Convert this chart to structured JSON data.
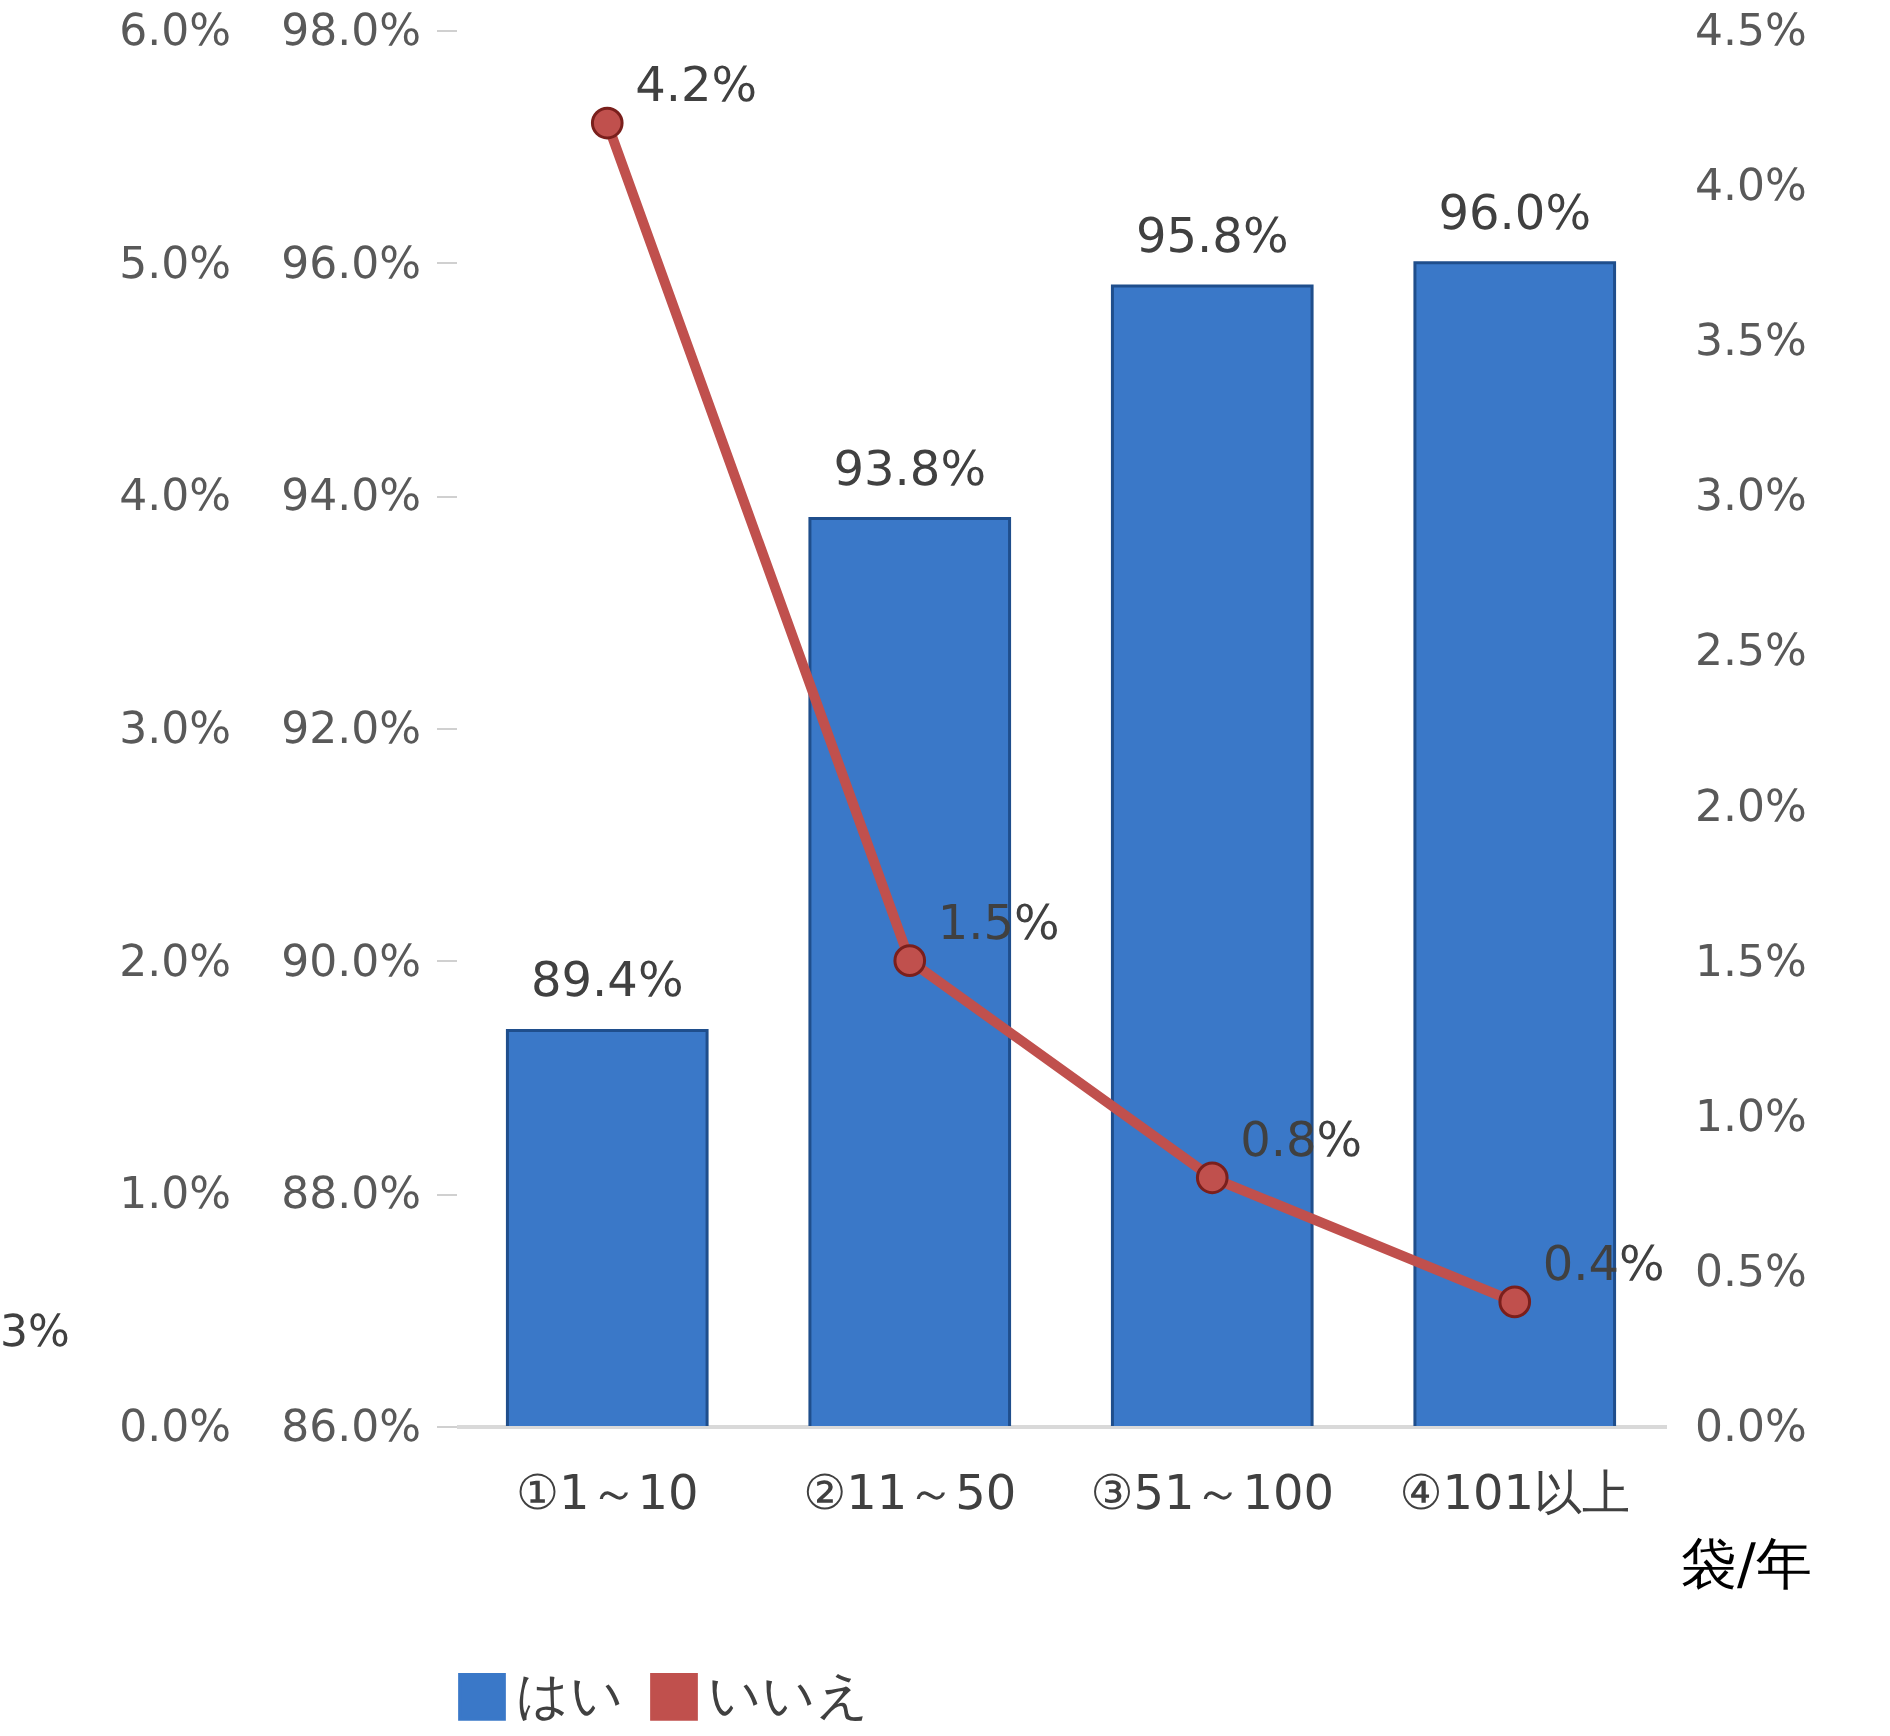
{
  "chart_data": {
    "type": "bar",
    "categories": [
      "①1～10",
      "②11～50",
      "③51～100",
      "④101以上"
    ],
    "xlabel": "袋/年",
    "series": [
      {
        "name": "はい",
        "axis": "y",
        "color": "#3a78c8",
        "values": [
          89.4,
          93.8,
          95.8,
          96.0
        ],
        "value_labels": [
          "89.4%",
          "93.8%",
          "95.8%",
          "96.0%"
        ]
      },
      {
        "name": "いいえ",
        "type": "line",
        "axis": "y2",
        "color": "#c0504d",
        "marker": "circle",
        "values": [
          4.2,
          1.5,
          0.8,
          0.4
        ],
        "value_labels": [
          "4.2%",
          "1.5%",
          "0.8%",
          "0.4%"
        ]
      }
    ],
    "ylim": [
      86,
      98
    ],
    "yticks": [
      {
        "value": 86,
        "label": "86.0%"
      },
      {
        "value": 88,
        "label": "88.0%"
      },
      {
        "value": 90,
        "label": "90.0%"
      },
      {
        "value": 92,
        "label": "92.0%"
      },
      {
        "value": 94,
        "label": "94.0%"
      },
      {
        "value": 96,
        "label": "96.0%"
      },
      {
        "value": 98,
        "label": "98.0%"
      }
    ],
    "y2lim": [
      0,
      4.5
    ],
    "y2ticks": [
      {
        "value": 0,
        "label": "0.0%"
      },
      {
        "value": 0.5,
        "label": "0.5%"
      },
      {
        "value": 1,
        "label": "1.0%"
      },
      {
        "value": 1.5,
        "label": "1.5%"
      },
      {
        "value": 2,
        "label": "2.0%"
      },
      {
        "value": 2.5,
        "label": "2.5%"
      },
      {
        "value": 3,
        "label": "3.0%"
      },
      {
        "value": 3.5,
        "label": "3.5%"
      },
      {
        "value": 4,
        "label": "4.0%"
      },
      {
        "value": 4.5,
        "label": "4.5%"
      }
    ],
    "y3lim": [
      0,
      6
    ],
    "y3ticks": [
      {
        "value": 0,
        "label": "0.0%"
      },
      {
        "value": 1,
        "label": "1.0%"
      },
      {
        "value": 2,
        "label": "2.0%"
      },
      {
        "value": 3,
        "label": "3.0%"
      },
      {
        "value": 4,
        "label": "4.0%"
      },
      {
        "value": 5,
        "label": "5.0%"
      },
      {
        "value": 6,
        "label": "6.0%"
      }
    ],
    "annotations": [
      "3%"
    ],
    "grid": false,
    "legend": "bottom"
  }
}
